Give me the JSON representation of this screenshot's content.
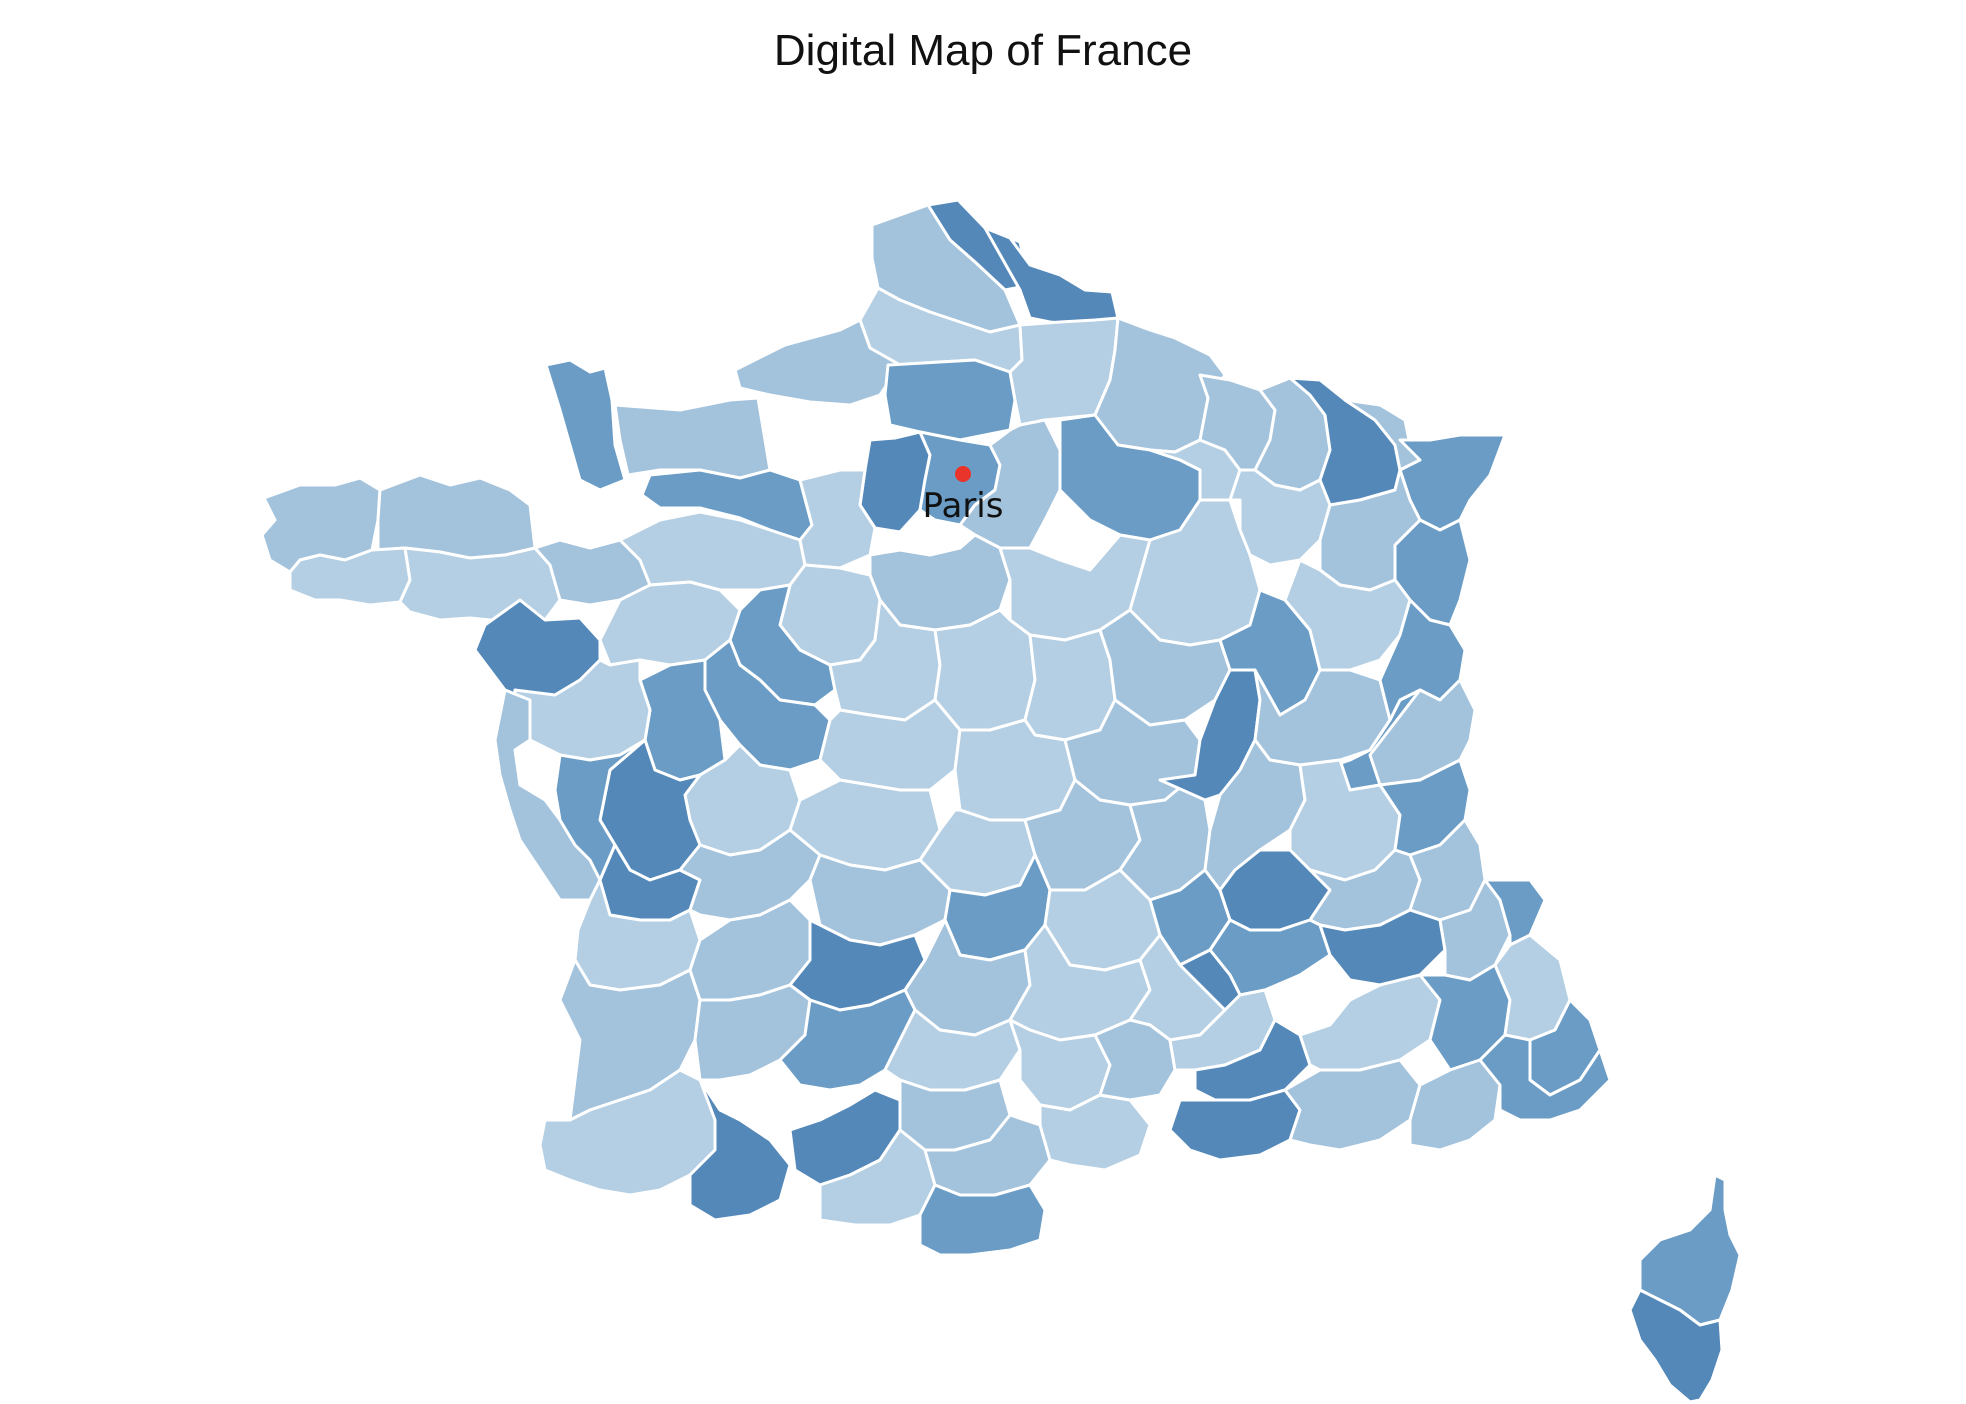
{
  "title": "Digital Map of France",
  "colors": {
    "background": "#ffffff",
    "border": "#ffffff",
    "fill_light": "#b4cfe3",
    "fill_mid": "#a3c2dc",
    "fill_dark": "#6a9cc5",
    "fill_darker": "#5388b9",
    "marker": "#e8342a"
  },
  "markers": [
    {
      "label": "Paris",
      "color": "#e8342a"
    }
  ]
}
